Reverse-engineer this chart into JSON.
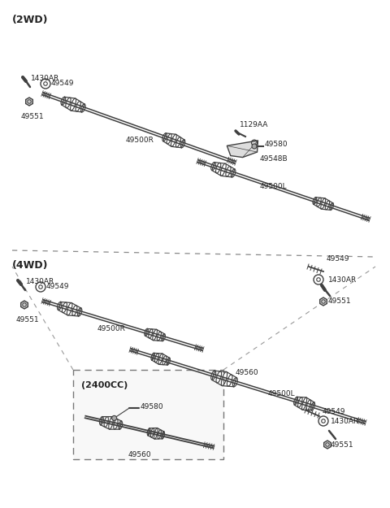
{
  "bg_color": "#ffffff",
  "line_color": "#404040",
  "text_color": "#222222",
  "section_2wd_label": "(2WD)",
  "section_4wd_label": "(4WD)",
  "section_2400cc_label": "(2400CC)",
  "parts": {
    "2wd_right_shaft": "49500R",
    "2wd_left_shaft": "49500L",
    "2wd_bolt": "1430AR",
    "2wd_washer": "49549",
    "2wd_nut": "49551",
    "2wd_bearing": "1129AA",
    "2wd_bracket": "49580",
    "2wd_bracket2": "49548B",
    "4wd_right_shaft": "49500R",
    "4wd_left_shaft": "49500L",
    "4wd_bolt_left": "1430AR",
    "4wd_washer_left": "49549",
    "4wd_nut_left": "49551",
    "4wd_bolt_right": "1430AR",
    "4wd_washer_right": "49549",
    "4wd_nut_right": "49551",
    "4wd_intermediate": "49560",
    "2400cc_shaft": "49560",
    "2400cc_bolt": "49580"
  },
  "fig_width": 4.8,
  "fig_height": 6.25,
  "dpi": 100
}
